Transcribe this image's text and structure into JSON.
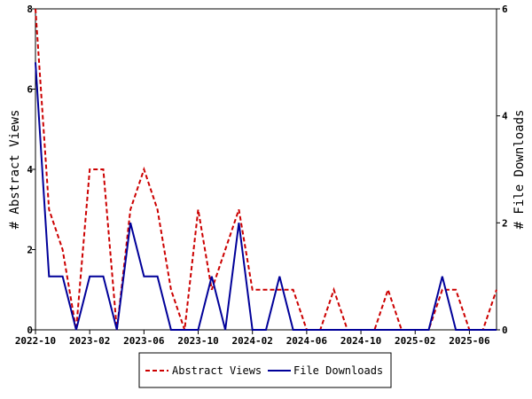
{
  "chart_data": {
    "type": "line",
    "x": [
      "2022-10",
      "2022-11",
      "2022-12",
      "2023-01",
      "2023-02",
      "2023-03",
      "2023-04",
      "2023-05",
      "2023-06",
      "2023-07",
      "2023-08",
      "2023-09",
      "2023-10",
      "2023-11",
      "2023-12",
      "2024-01",
      "2024-02",
      "2024-03",
      "2024-04",
      "2024-05",
      "2024-06",
      "2024-07",
      "2024-08",
      "2024-09",
      "2024-10",
      "2024-11",
      "2024-12",
      "2025-01",
      "2025-02",
      "2025-03",
      "2025-04",
      "2025-05",
      "2025-06",
      "2025-07",
      "2025-08"
    ],
    "xticks": [
      "2022-10",
      "2023-02",
      "2023-06",
      "2023-10",
      "2024-02",
      "2024-06",
      "2024-10",
      "2025-02",
      "2025-06"
    ],
    "series": [
      {
        "name": "Abstract Views",
        "axis": "left",
        "color": "#cc0000",
        "style": "dashed",
        "values": [
          8,
          3,
          2,
          0,
          4,
          4,
          0,
          3,
          4,
          3,
          1,
          0,
          3,
          1,
          2,
          3,
          1,
          1,
          1,
          1,
          0,
          0,
          1,
          0,
          0,
          0,
          1,
          0,
          0,
          0,
          1,
          1,
          0,
          0,
          1
        ]
      },
      {
        "name": "File Downloads",
        "axis": "right",
        "color": "#000099",
        "style": "solid",
        "values": [
          5,
          1,
          1,
          0,
          1,
          1,
          0,
          2,
          1,
          1,
          0,
          0,
          0,
          1,
          0,
          2,
          0,
          0,
          1,
          0,
          0,
          0,
          0,
          0,
          0,
          0,
          0,
          0,
          0,
          0,
          1,
          0,
          0,
          0,
          0
        ]
      }
    ],
    "ylabel_left": "# Abstract Views",
    "ylabel_right": "# File Downloads",
    "ylim_left": [
      0,
      8
    ],
    "ylim_right": [
      0,
      6
    ],
    "yticks_left": [
      0,
      2,
      4,
      6,
      8
    ],
    "yticks_right": [
      0,
      2,
      4,
      6
    ],
    "legend_position": "bottom-center",
    "grid": false
  }
}
